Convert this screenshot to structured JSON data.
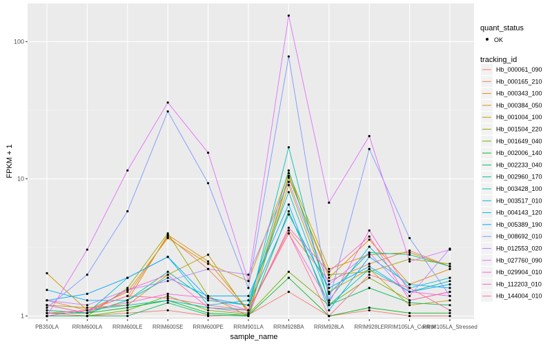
{
  "chart_data": {
    "type": "line",
    "xlabel": "sample_name",
    "ylabel": "FPKM + 1",
    "y_scale": "log10",
    "ylim": [
      0.95,
      190
    ],
    "grid": true,
    "legend_position": "right",
    "y_ticks": [
      {
        "value": 1,
        "label": "1"
      },
      {
        "value": 10,
        "label": "10"
      },
      {
        "value": 100,
        "label": "100"
      }
    ],
    "categories": [
      "PB350LA",
      "RRIM600LA",
      "RRIM600LE",
      "RRIM600SE",
      "RRIM600PE",
      "RRIM901LA",
      "RRIM928BA",
      "RRIM928LA",
      "RRIM928LE",
      "RRIM105LA_Control",
      "RRIM105LA_Stressed"
    ],
    "shape_legend": {
      "title": "quant_status",
      "items": [
        "OK"
      ]
    },
    "color_legend_title": "tracking_id",
    "series": [
      {
        "name": "Hb_000061_090",
        "color": "#F8766D",
        "values": [
          1.05,
          1.0,
          1.05,
          1.1,
          1.0,
          1.02,
          1.5,
          1.0,
          1.1,
          1.0,
          1.0
        ]
      },
      {
        "name": "Hb_000165_210",
        "color": "#F17E4A",
        "values": [
          1.3,
          1.1,
          1.4,
          3.8,
          2.2,
          1.1,
          4.2,
          1.8,
          2.4,
          3.0,
          2.3
        ]
      },
      {
        "name": "Hb_000343_100",
        "color": "#E38900",
        "values": [
          1.1,
          1.05,
          1.3,
          3.9,
          2.5,
          1.1,
          10.5,
          1.9,
          3.6,
          1.7,
          2.2
        ]
      },
      {
        "name": "Hb_000384_050",
        "color": "#D09400",
        "values": [
          2.05,
          1.1,
          1.5,
          3.7,
          2.4,
          1.8,
          11.0,
          2.2,
          2.8,
          2.9,
          2.3
        ]
      },
      {
        "name": "Hb_001004_100",
        "color": "#B79F00",
        "values": [
          1.2,
          1.15,
          1.2,
          2.0,
          2.8,
          1.05,
          9.0,
          1.5,
          2.2,
          1.2,
          1.3
        ]
      },
      {
        "name": "Hb_001504_220",
        "color": "#99A800",
        "values": [
          1.0,
          1.0,
          1.6,
          4.0,
          1.4,
          1.0,
          10.2,
          2.0,
          2.1,
          2.6,
          2.4
        ]
      },
      {
        "name": "Hb_001649_040",
        "color": "#72B000",
        "values": [
          1.0,
          1.0,
          1.1,
          1.4,
          1.1,
          1.03,
          2.1,
          1.2,
          1.9,
          1.3,
          1.5
        ]
      },
      {
        "name": "Hb_002006_140",
        "color": "#00B81F",
        "values": [
          1.05,
          1.05,
          1.15,
          1.3,
          1.05,
          1.01,
          1.9,
          1.0,
          1.15,
          1.05,
          1.05
        ]
      },
      {
        "name": "Hb_002233_040",
        "color": "#00BD5C",
        "values": [
          1.0,
          1.0,
          1.0,
          1.25,
          1.02,
          1.0,
          5.8,
          1.2,
          1.6,
          1.25,
          1.2
        ]
      },
      {
        "name": "Hb_002960_170",
        "color": "#00C08E",
        "values": [
          1.1,
          1.05,
          1.3,
          2.1,
          1.3,
          1.2,
          11.5,
          1.45,
          2.9,
          2.8,
          2.3
        ]
      },
      {
        "name": "Hb_003428_100",
        "color": "#00C1B2",
        "values": [
          1.0,
          1.1,
          1.2,
          1.3,
          1.15,
          1.1,
          17.0,
          1.2,
          2.2,
          1.5,
          1.8
        ]
      },
      {
        "name": "Hb_003517_010",
        "color": "#00BDD3",
        "values": [
          1.2,
          1.05,
          1.9,
          2.7,
          1.2,
          1.3,
          8.0,
          1.3,
          3.2,
          1.6,
          1.9
        ]
      },
      {
        "name": "Hb_004143_120",
        "color": "#00B4EF",
        "values": [
          1.55,
          1.3,
          1.3,
          1.9,
          1.4,
          1.4,
          6.5,
          1.1,
          2.7,
          1.7,
          1.6
        ]
      },
      {
        "name": "Hb_005389_190",
        "color": "#00A7FF",
        "values": [
          1.3,
          1.45,
          1.9,
          2.7,
          1.35,
          1.2,
          5.5,
          1.6,
          2.3,
          1.5,
          1.7
        ]
      },
      {
        "name": "Hb_008692_010",
        "color": "#7F96FF",
        "values": [
          1.15,
          2.0,
          5.8,
          31.0,
          9.3,
          1.6,
          78.0,
          1.3,
          16.5,
          3.7,
          1.4
        ]
      },
      {
        "name": "Hb_012553_020",
        "color": "#BC81FF",
        "values": [
          1.3,
          1.2,
          1.55,
          1.8,
          2.2,
          2.0,
          9.5,
          1.7,
          2.9,
          1.4,
          3.1
        ]
      },
      {
        "name": "Hb_027760_090",
        "color": "#E26EF7",
        "values": [
          1.0,
          3.05,
          11.5,
          36.0,
          15.5,
          1.8,
          155.0,
          6.7,
          20.5,
          2.5,
          3.05
        ]
      },
      {
        "name": "Hb_029904_010",
        "color": "#F863DF",
        "values": [
          1.0,
          1.1,
          1.25,
          1.45,
          1.35,
          1.1,
          4.0,
          1.25,
          4.2,
          1.5,
          1.4
        ]
      },
      {
        "name": "Hb_112203_010",
        "color": "#FF62BC",
        "values": [
          1.2,
          1.05,
          1.55,
          2.0,
          1.15,
          1.05,
          4.4,
          2.1,
          3.8,
          1.3,
          1.5
        ]
      },
      {
        "name": "Hb_144004_010",
        "color": "#FF6A98",
        "values": [
          1.05,
          1.1,
          1.4,
          1.35,
          1.2,
          1.1,
          4.0,
          1.0,
          2.0,
          1.6,
          1.1
        ]
      }
    ]
  }
}
